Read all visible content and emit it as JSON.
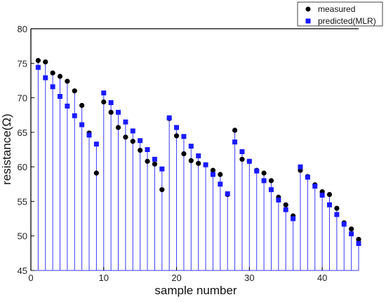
{
  "chart_data": {
    "type": "scatter",
    "xlabel": "sample number",
    "ylabel": "resistance(Ω)",
    "xlim": [
      0,
      45
    ],
    "ylim": [
      45,
      80
    ],
    "x_ticks": [
      0,
      10,
      20,
      30,
      40
    ],
    "y_ticks": [
      45,
      50,
      55,
      60,
      65,
      70,
      75,
      80
    ],
    "grid": false,
    "legend_position": "top-right",
    "x": [
      1,
      2,
      3,
      4,
      5,
      6,
      7,
      8,
      9,
      10,
      11,
      12,
      13,
      14,
      15,
      16,
      17,
      18,
      19,
      20,
      21,
      22,
      23,
      24,
      25,
      26,
      27,
      28,
      29,
      30,
      31,
      32,
      33,
      34,
      35,
      36,
      37,
      38,
      39,
      40,
      41,
      42,
      43,
      44,
      45
    ],
    "series": [
      {
        "name": "measured",
        "color": "#000000",
        "marker": "circle",
        "values": [
          75.4,
          75.2,
          73.6,
          73.1,
          72.4,
          71.0,
          68.9,
          64.9,
          59.1,
          69.4,
          67.9,
          65.7,
          64.3,
          63.7,
          62.4,
          60.8,
          60.4,
          56.7,
          67.0,
          64.5,
          61.9,
          60.9,
          60.5,
          60.3,
          59.5,
          58.9,
          56.0,
          65.3,
          61.1,
          60.8,
          59.5,
          59.1,
          58.0,
          55.6,
          54.5,
          52.9,
          59.5,
          58.6,
          57.4,
          56.4,
          56.0,
          54.0,
          51.9,
          51.0,
          49.5
        ]
      },
      {
        "name": "predicted(MLR)",
        "color": "#1a1aff",
        "marker": "square",
        "values": [
          74.4,
          72.9,
          71.6,
          70.2,
          68.8,
          67.4,
          66.1,
          64.6,
          63.3,
          70.7,
          69.3,
          67.9,
          66.5,
          65.2,
          63.8,
          62.5,
          61.1,
          59.7,
          67.1,
          65.7,
          64.4,
          63.0,
          61.6,
          60.3,
          58.9,
          57.5,
          56.1,
          63.6,
          62.2,
          60.8,
          59.4,
          58.0,
          56.7,
          55.2,
          53.8,
          52.5,
          60.0,
          58.5,
          57.2,
          55.9,
          54.5,
          53.1,
          51.7,
          50.3,
          48.9
        ]
      }
    ]
  }
}
